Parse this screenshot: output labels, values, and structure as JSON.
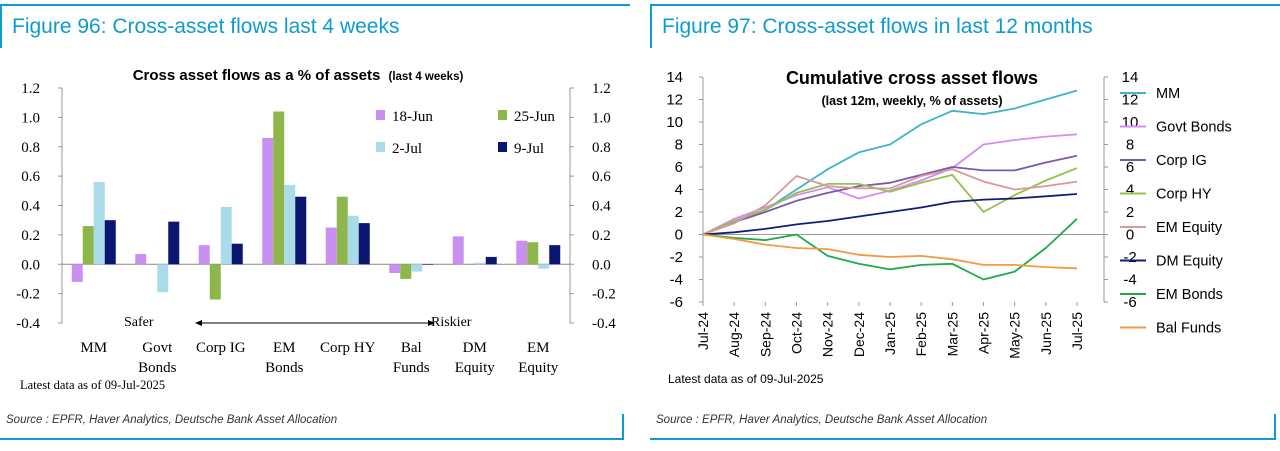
{
  "left": {
    "figure_title": "Figure 96: Cross-asset flows last 4 weeks",
    "source": "Source : EPFR, Haver Analytics, Deutsche Bank Asset Allocation",
    "safer_label": "Safer",
    "riskier_label": "Riskier"
  },
  "right": {
    "figure_title": "Figure 97: Cross-asset flows in last 12 months",
    "source": "Source : EPFR, Haver Analytics, Deutsche Bank Asset Allocation"
  },
  "colors": {
    "accent": "#0f9bd0",
    "s18jun": "#c990f2",
    "s25jun": "#8fb64a",
    "s2jul": "#a9dbe8",
    "s9jul": "#0b1670",
    "MM": "#3fb4c7",
    "GovtBonds": "#d58af5",
    "CorpIG": "#7a5aa8",
    "CorpHY": "#93c24a",
    "EMEquity": "#d79a9a",
    "DMEquity": "#141c7a",
    "EMBonds": "#1faa4a",
    "BalFunds": "#f29a3f"
  },
  "chart_data": [
    {
      "type": "bar",
      "title": "Cross asset flows as a % of assets",
      "title_suffix": "(last 4 weeks)",
      "categories": [
        "MM",
        "Govt\nBonds",
        "Corp IG",
        "EM\nBonds",
        "Corp HY",
        "Bal\nFunds",
        "DM\nEquity",
        "EM\nEquity"
      ],
      "series": [
        {
          "name": "18-Jun",
          "color_key": "s18jun",
          "values": [
            -0.12,
            0.07,
            0.13,
            0.86,
            0.25,
            -0.06,
            0.19,
            0.16
          ]
        },
        {
          "name": "25-Jun",
          "color_key": "s25jun",
          "values": [
            0.26,
            0.0,
            -0.24,
            1.04,
            0.46,
            -0.1,
            0.0,
            0.15
          ]
        },
        {
          "name": "2-Jul",
          "color_key": "s2jul",
          "values": [
            0.56,
            -0.19,
            0.39,
            0.54,
            0.33,
            -0.05,
            0.01,
            -0.03
          ]
        },
        {
          "name": "9-Jul",
          "color_key": "s9jul",
          "values": [
            0.3,
            0.29,
            0.14,
            0.46,
            0.28,
            0.0,
            0.05,
            0.13
          ]
        }
      ],
      "ylim": [
        -0.4,
        1.2
      ],
      "yticks": [
        "1.2",
        "1.0",
        "0.8",
        "0.6",
        "0.4",
        "0.2",
        "0.0",
        "-0.2",
        "-0.4"
      ],
      "ytick_values": [
        1.2,
        1.0,
        0.8,
        0.6,
        0.4,
        0.2,
        0.0,
        -0.2,
        -0.4
      ],
      "legend": "top-right",
      "footnote": "Latest data as of 09-Jul-2025"
    },
    {
      "type": "line",
      "title": "Cumulative cross asset flows",
      "subtitle": "(last 12m, weekly, % of assets)",
      "x": [
        "Jul-24",
        "Aug-24",
        "Sep-24",
        "Oct-24",
        "Nov-24",
        "Dec-24",
        "Jan-25",
        "Feb-25",
        "Mar-25",
        "Apr-25",
        "May-25",
        "Jun-25",
        "Jul-25"
      ],
      "series": [
        {
          "name": "MM",
          "color_key": "MM",
          "values": [
            0,
            1.2,
            2.2,
            4.0,
            5.8,
            7.3,
            8.0,
            9.8,
            11.0,
            10.7,
            11.2,
            12.0,
            12.8
          ]
        },
        {
          "name": "Govt Bonds",
          "color_key": "GovtBonds",
          "values": [
            0,
            1.4,
            2.4,
            3.5,
            4.2,
            3.2,
            3.9,
            4.8,
            5.9,
            8.0,
            8.4,
            8.7,
            8.9
          ]
        },
        {
          "name": "Corp IG",
          "color_key": "CorpIG",
          "values": [
            0,
            1.1,
            2.0,
            3.0,
            3.7,
            4.3,
            4.6,
            5.3,
            6.0,
            5.7,
            5.7,
            6.4,
            7.0
          ]
        },
        {
          "name": "Corp HY",
          "color_key": "CorpHY",
          "values": [
            0,
            1.2,
            2.2,
            3.7,
            4.5,
            4.5,
            3.8,
            4.6,
            5.3,
            2.0,
            3.5,
            4.8,
            5.9
          ]
        },
        {
          "name": "EM Equity",
          "color_key": "EMEquity",
          "values": [
            0,
            1.0,
            2.6,
            5.2,
            4.3,
            4.1,
            4.1,
            5.2,
            5.8,
            4.7,
            4.0,
            4.3,
            4.7
          ]
        },
        {
          "name": "DM Equity",
          "color_key": "DMEquity",
          "values": [
            0,
            0.2,
            0.5,
            0.9,
            1.2,
            1.6,
            2.0,
            2.4,
            2.9,
            3.1,
            3.2,
            3.4,
            3.6
          ]
        },
        {
          "name": "EM Bonds",
          "color_key": "EMBonds",
          "values": [
            0,
            -0.3,
            -0.5,
            0.0,
            -1.9,
            -2.6,
            -3.1,
            -2.7,
            -2.6,
            -4.0,
            -3.3,
            -1.2,
            1.4
          ]
        },
        {
          "name": "Bal Funds",
          "color_key": "BalFunds",
          "values": [
            0,
            -0.4,
            -0.9,
            -1.2,
            -1.3,
            -1.8,
            -2.0,
            -1.9,
            -2.2,
            -2.7,
            -2.7,
            -2.9,
            -3.0
          ]
        }
      ],
      "ylim": [
        -6,
        14
      ],
      "yticks": [
        "14",
        "12",
        "10",
        "8",
        "6",
        "4",
        "2",
        "0",
        "-2",
        "-4",
        "-6"
      ],
      "ytick_values": [
        14,
        12,
        10,
        8,
        6,
        4,
        2,
        0,
        -2,
        -4,
        -6
      ],
      "legend": "right",
      "footnote": "Latest data as of 09-Jul-2025"
    }
  ]
}
